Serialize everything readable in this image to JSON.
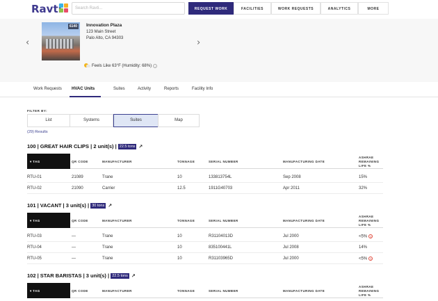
{
  "brand": {
    "name": "Ravti"
  },
  "search": {
    "placeholder": "Search Ravti..."
  },
  "nav": {
    "request_work": "REQUEST WORK",
    "facilities": "FACILITIES",
    "work_requests": "WORK REQUESTS",
    "analytics": "ANALYTICS",
    "more": "MORE"
  },
  "building": {
    "photo_tag": "6140",
    "name": "Innovation Plaza",
    "street": "123 Main Street",
    "city": "Palo Alto, CA 94303",
    "weather": "Feels Like 63°F (Humidity: 68%)"
  },
  "tabs": [
    "Work Requests",
    "HVAC Units",
    "Suites",
    "Activity",
    "Reports",
    "Facility Info"
  ],
  "filter": {
    "label": "FILTER BY:",
    "options": [
      "List",
      "Systems",
      "Suites",
      "Map"
    ],
    "active": "Suites",
    "results": "(29) Results"
  },
  "table_headers": {
    "tag": "▾ TAG",
    "qr_code": "QR CODE",
    "manufacturer": "MANUFACTURER",
    "tonnage": "TONNAGE",
    "serial": "SERIAL NUMBER",
    "date": "MANUFACTURING DATE",
    "life_1": "ASHRAE",
    "life_2": "REMAINING",
    "life_3": "LIFE %"
  },
  "suites": [
    {
      "title": "100 | GREAT HAIR CLIPS | 2 unit(s) |",
      "tons": "22.5 tons",
      "rows": [
        {
          "tag": "RTU-01",
          "qr": "21089",
          "manufacturer": "Trane",
          "tonnage": "10",
          "serial": "133813754L",
          "date": "Sep 2008",
          "life": "15%",
          "warn": false
        },
        {
          "tag": "RTU-02",
          "qr": "21090",
          "manufacturer": "Carrier",
          "tonnage": "12.5",
          "serial": "1911G40703",
          "date": "Apr 2011",
          "life": "32%",
          "warn": false
        }
      ]
    },
    {
      "title": "101 | VACANT | 3 unit(s) |",
      "tons": "30 tons",
      "rows": [
        {
          "tag": "RTU-03",
          "qr": "—",
          "manufacturer": "Trane",
          "tonnage": "10",
          "serial": "R31104013D",
          "date": "Jul 2000",
          "life": "<5%",
          "warn": true
        },
        {
          "tag": "RTU-04",
          "qr": "—",
          "manufacturer": "Trane",
          "tonnage": "10",
          "serial": "835100441L",
          "date": "Jul 2008",
          "life": "14%",
          "warn": false
        },
        {
          "tag": "RTU-05",
          "qr": "—",
          "manufacturer": "Trane",
          "tonnage": "10",
          "serial": "R31103965D",
          "date": "Jul 2000",
          "life": "<5%",
          "warn": true
        }
      ]
    },
    {
      "title": "102 | STAR BARISTAS | 3 unit(s) |",
      "tons": "22.5 tons",
      "rows": []
    }
  ],
  "colors": {
    "accent": "#2f2a7b",
    "warning": "#e0483a",
    "link": "#3a3f8f"
  },
  "icons": {
    "weather": "sun-cloud-icon",
    "info": "info-icon",
    "warning": "warning-icon",
    "external": "external-link-icon"
  }
}
